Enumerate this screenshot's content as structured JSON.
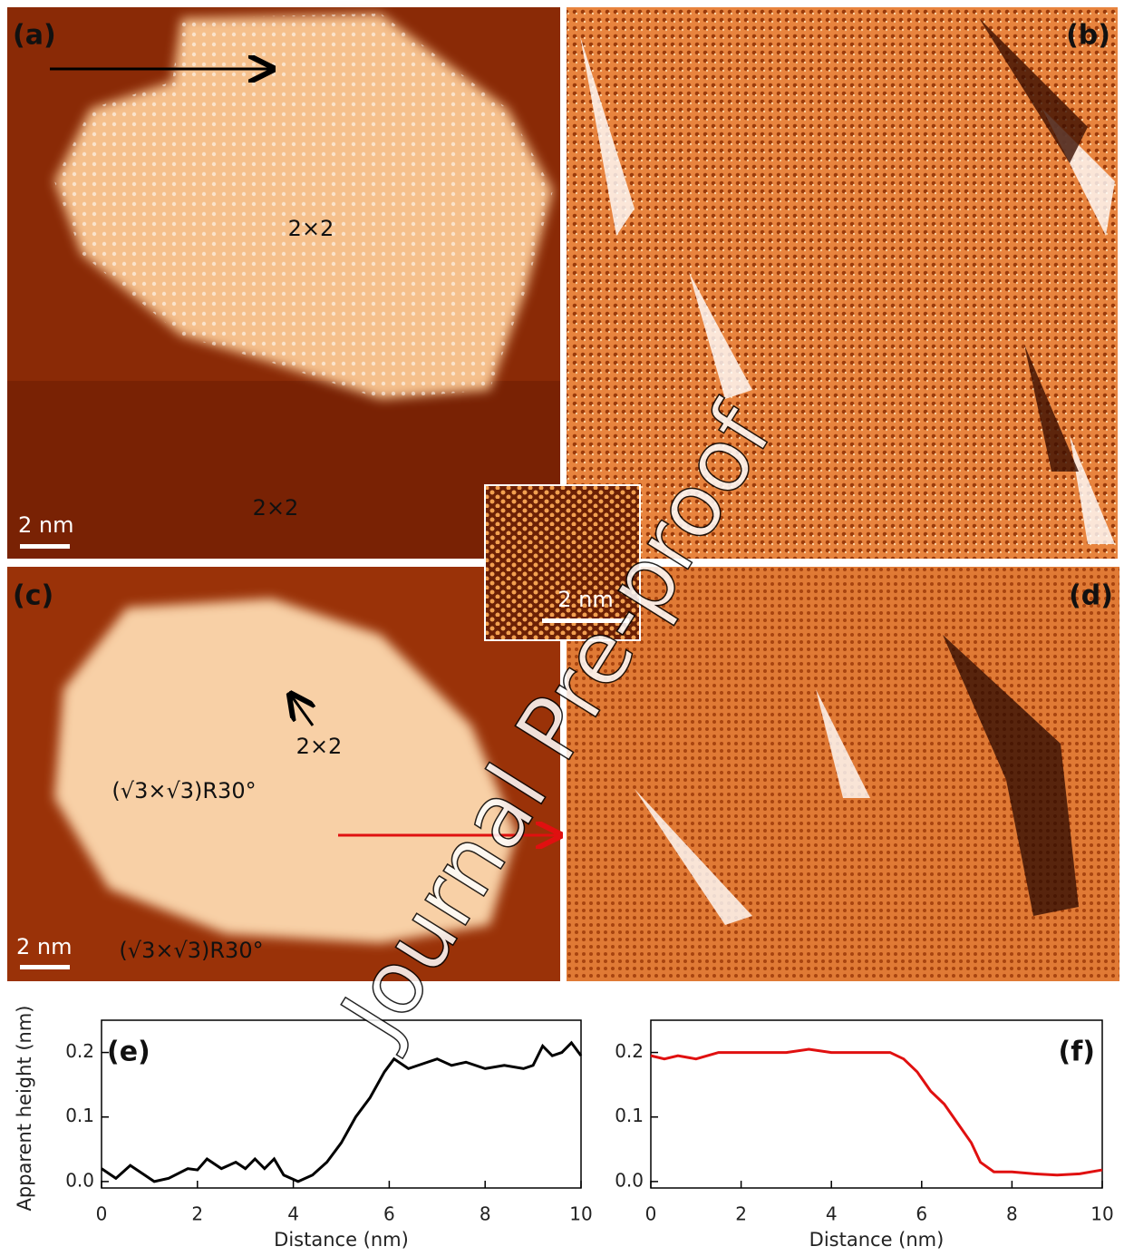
{
  "panels": [
    {
      "label": "(a)",
      "annotations": [
        "2×2",
        "2×2"
      ],
      "scale_bar": "2 nm"
    },
    {
      "label": "(b)"
    },
    {
      "label": "(c)",
      "annotations": [
        "2×2",
        "(√3×√3)R30°",
        "(√3×√3)R30°"
      ],
      "scale_bar": "2 nm"
    },
    {
      "label": "(d)"
    }
  ],
  "inset": {
    "scale_bar": "2 nm"
  },
  "watermark": "Journal Pre-proof",
  "chart_data": [
    {
      "type": "line",
      "panel_label": "(e)",
      "xlabel": "Distance (nm)",
      "ylabel": "Apparent height (nm)",
      "color": "#000000",
      "x": [
        0,
        0.3,
        0.6,
        0.9,
        1.1,
        1.4,
        1.8,
        2.0,
        2.2,
        2.5,
        2.8,
        3.0,
        3.2,
        3.4,
        3.6,
        3.8,
        4.1,
        4.4,
        4.7,
        5.0,
        5.3,
        5.6,
        5.9,
        6.1,
        6.4,
        6.8,
        7.0,
        7.3,
        7.6,
        8.0,
        8.4,
        8.8,
        9.0,
        9.2,
        9.4,
        9.6,
        9.8,
        10
      ],
      "values": [
        0.02,
        0.005,
        0.025,
        0.01,
        0.0,
        0.005,
        0.02,
        0.018,
        0.035,
        0.02,
        0.03,
        0.02,
        0.035,
        0.02,
        0.035,
        0.01,
        0.0,
        0.01,
        0.03,
        0.06,
        0.1,
        0.13,
        0.17,
        0.19,
        0.175,
        0.185,
        0.19,
        0.18,
        0.185,
        0.175,
        0.18,
        0.175,
        0.18,
        0.21,
        0.195,
        0.2,
        0.215,
        0.195
      ],
      "xlim": [
        0,
        10
      ],
      "ylim": [
        -0.01,
        0.25
      ],
      "xticks": [
        0,
        2,
        4,
        6,
        8,
        10
      ],
      "yticks": [
        {
          "value": 0,
          "label": "0.0"
        },
        0.1,
        0.2
      ]
    },
    {
      "type": "line",
      "panel_label": "(f)",
      "xlabel": "Distance (nm)",
      "color": "#e01010",
      "x": [
        0,
        0.3,
        0.6,
        1.0,
        1.5,
        2.0,
        2.5,
        3.0,
        3.5,
        4.0,
        4.5,
        5.0,
        5.3,
        5.6,
        5.9,
        6.2,
        6.5,
        6.8,
        7.1,
        7.3,
        7.6,
        8.0,
        8.5,
        9.0,
        9.5,
        10
      ],
      "values": [
        0.195,
        0.19,
        0.195,
        0.19,
        0.2,
        0.2,
        0.2,
        0.2,
        0.205,
        0.2,
        0.2,
        0.2,
        0.2,
        0.19,
        0.17,
        0.14,
        0.12,
        0.09,
        0.06,
        0.03,
        0.015,
        0.015,
        0.012,
        0.01,
        0.012,
        0.018
      ],
      "xlim": [
        0,
        10
      ],
      "ylim": [
        -0.01,
        0.25
      ],
      "xticks": [
        0,
        2,
        4,
        6,
        8,
        10
      ],
      "yticks": [
        {
          "value": 0,
          "label": "0.0"
        },
        0.1,
        0.2
      ]
    }
  ]
}
